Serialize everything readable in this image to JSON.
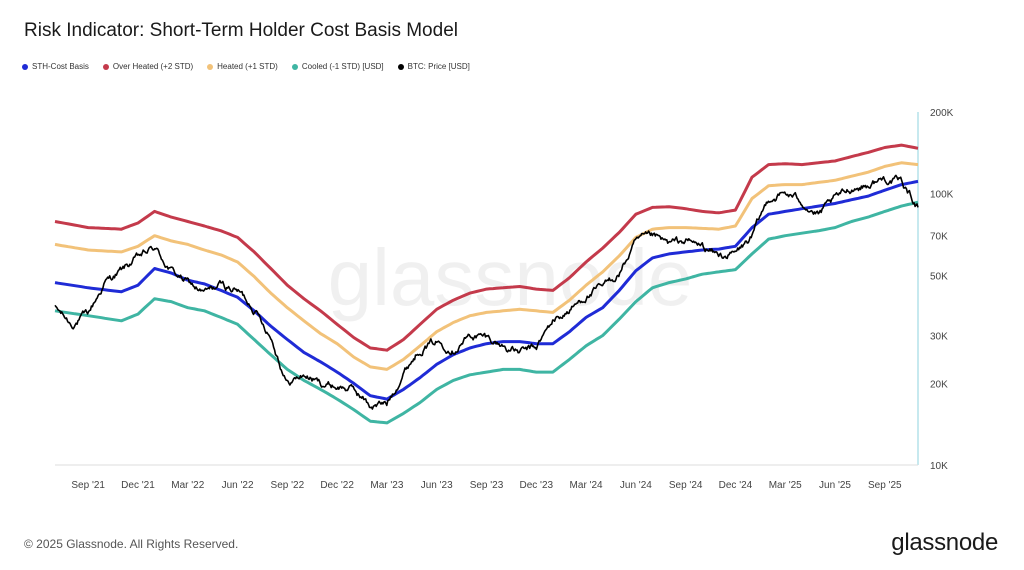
{
  "header": {
    "title": "Risk Indicator: Short-Term Holder Cost Basis Model"
  },
  "footer": {
    "copyright": "© 2025 Glassnode. All Rights Reserved.",
    "brand": "glassnode"
  },
  "watermark": "glassnode",
  "chart_data": {
    "type": "line",
    "title": "Risk Indicator: Short-Term Holder Cost Basis Model",
    "yscale": "log",
    "ylim": [
      10000,
      200000
    ],
    "y_ticks": [
      {
        "v": 10000,
        "label": "10K"
      },
      {
        "v": 20000,
        "label": "20K"
      },
      {
        "v": 30000,
        "label": "30K"
      },
      {
        "v": 50000,
        "label": "50K"
      },
      {
        "v": 70000,
        "label": "70K"
      },
      {
        "v": 100000,
        "label": "100K"
      },
      {
        "v": 200000,
        "label": "200K"
      }
    ],
    "x_ticks": [
      "Sep '21",
      "Dec '21",
      "Mar '22",
      "Jun '22",
      "Sep '22",
      "Dec '22",
      "Mar '23",
      "Jun '23",
      "Sep '23",
      "Dec '23",
      "Mar '24",
      "Jun '24",
      "Sep '24",
      "Dec '24",
      "Mar '25",
      "Jun '25",
      "Sep '25"
    ],
    "x_range": [
      "Jul '21",
      "Nov '25"
    ],
    "legend_position": "top-left",
    "series": [
      {
        "name": "STH-Cost Basis",
        "color": "#1f2bd6",
        "points": [
          [
            0,
            47000
          ],
          [
            2,
            45000
          ],
          [
            4,
            43500
          ],
          [
            5,
            46000
          ],
          [
            6,
            53000
          ],
          [
            7,
            51000
          ],
          [
            8,
            48000
          ],
          [
            9,
            46500
          ],
          [
            10,
            44000
          ],
          [
            11,
            41500
          ],
          [
            12,
            37000
          ],
          [
            13,
            32500
          ],
          [
            14,
            29000
          ],
          [
            15,
            26000
          ],
          [
            16,
            24000
          ],
          [
            17,
            22000
          ],
          [
            18,
            20000
          ],
          [
            19,
            18000
          ],
          [
            20,
            17500
          ],
          [
            21,
            19000
          ],
          [
            22,
            21000
          ],
          [
            23,
            23500
          ],
          [
            24,
            25500
          ],
          [
            25,
            27000
          ],
          [
            26,
            28000
          ],
          [
            27,
            28500
          ],
          [
            28,
            28500
          ],
          [
            29,
            28000
          ],
          [
            30,
            28000
          ],
          [
            31,
            31000
          ],
          [
            32,
            35000
          ],
          [
            33,
            38000
          ],
          [
            34,
            44000
          ],
          [
            35,
            52000
          ],
          [
            36,
            58000
          ],
          [
            37,
            60000
          ],
          [
            38,
            61000
          ],
          [
            39,
            62000
          ],
          [
            40,
            62500
          ],
          [
            41,
            64000
          ],
          [
            42,
            75000
          ],
          [
            43,
            84000
          ],
          [
            44,
            86000
          ],
          [
            45,
            88000
          ],
          [
            46,
            90000
          ],
          [
            47,
            92000
          ],
          [
            48,
            95000
          ],
          [
            49,
            98000
          ],
          [
            50,
            103000
          ],
          [
            51,
            108000
          ],
          [
            52,
            111000
          ]
        ]
      },
      {
        "name": "Over Heated (+2 STD)",
        "color": "#c43a4b",
        "points": [
          [
            0,
            79000
          ],
          [
            2,
            75000
          ],
          [
            4,
            74000
          ],
          [
            5,
            78000
          ],
          [
            6,
            86000
          ],
          [
            7,
            82000
          ],
          [
            8,
            79000
          ],
          [
            9,
            76000
          ],
          [
            10,
            73000
          ],
          [
            11,
            69000
          ],
          [
            12,
            61000
          ],
          [
            13,
            53000
          ],
          [
            14,
            46000
          ],
          [
            15,
            41000
          ],
          [
            16,
            37000
          ],
          [
            17,
            33000
          ],
          [
            18,
            29500
          ],
          [
            19,
            27000
          ],
          [
            20,
            26500
          ],
          [
            21,
            29000
          ],
          [
            22,
            33000
          ],
          [
            23,
            37500
          ],
          [
            24,
            40500
          ],
          [
            25,
            43000
          ],
          [
            26,
            44500
          ],
          [
            27,
            45000
          ],
          [
            28,
            45500
          ],
          [
            29,
            44500
          ],
          [
            30,
            44000
          ],
          [
            31,
            49000
          ],
          [
            32,
            56000
          ],
          [
            33,
            63000
          ],
          [
            34,
            72000
          ],
          [
            35,
            84000
          ],
          [
            36,
            89000
          ],
          [
            37,
            89500
          ],
          [
            38,
            88000
          ],
          [
            39,
            86000
          ],
          [
            40,
            85000
          ],
          [
            41,
            87000
          ],
          [
            42,
            115000
          ],
          [
            43,
            128000
          ],
          [
            44,
            129000
          ],
          [
            45,
            128000
          ],
          [
            46,
            130000
          ],
          [
            47,
            132000
          ],
          [
            48,
            137000
          ],
          [
            49,
            142000
          ],
          [
            50,
            148000
          ],
          [
            51,
            151000
          ],
          [
            52,
            147000
          ]
        ]
      },
      {
        "name": "Heated (+1 STD)",
        "color": "#f2c279",
        "points": [
          [
            0,
            65000
          ],
          [
            2,
            62000
          ],
          [
            4,
            61000
          ],
          [
            5,
            64000
          ],
          [
            6,
            70000
          ],
          [
            7,
            67000
          ],
          [
            8,
            65000
          ],
          [
            9,
            62000
          ],
          [
            10,
            59500
          ],
          [
            11,
            56000
          ],
          [
            12,
            49500
          ],
          [
            13,
            43000
          ],
          [
            14,
            38000
          ],
          [
            15,
            34000
          ],
          [
            16,
            30500
          ],
          [
            17,
            28000
          ],
          [
            18,
            25000
          ],
          [
            19,
            23000
          ],
          [
            20,
            22500
          ],
          [
            21,
            24500
          ],
          [
            22,
            27500
          ],
          [
            23,
            31000
          ],
          [
            24,
            33500
          ],
          [
            25,
            35500
          ],
          [
            26,
            36500
          ],
          [
            27,
            37000
          ],
          [
            28,
            37500
          ],
          [
            29,
            37000
          ],
          [
            30,
            36500
          ],
          [
            31,
            40500
          ],
          [
            32,
            46000
          ],
          [
            33,
            51500
          ],
          [
            34,
            59000
          ],
          [
            35,
            69000
          ],
          [
            36,
            74000
          ],
          [
            37,
            75000
          ],
          [
            38,
            75000
          ],
          [
            39,
            74500
          ],
          [
            40,
            74000
          ],
          [
            41,
            76000
          ],
          [
            42,
            96000
          ],
          [
            43,
            107000
          ],
          [
            44,
            108000
          ],
          [
            45,
            108000
          ],
          [
            46,
            110000
          ],
          [
            47,
            112000
          ],
          [
            48,
            116000
          ],
          [
            49,
            120000
          ],
          [
            50,
            126000
          ],
          [
            51,
            130000
          ],
          [
            52,
            128000
          ]
        ]
      },
      {
        "name": "Cooled (-1 STD) [USD]",
        "color": "#3fb5a3",
        "points": [
          [
            0,
            37000
          ],
          [
            2,
            35500
          ],
          [
            4,
            34000
          ],
          [
            5,
            36000
          ],
          [
            6,
            41000
          ],
          [
            7,
            40000
          ],
          [
            8,
            38000
          ],
          [
            9,
            37000
          ],
          [
            10,
            35000
          ],
          [
            11,
            33000
          ],
          [
            12,
            29000
          ],
          [
            13,
            25500
          ],
          [
            14,
            22500
          ],
          [
            15,
            20500
          ],
          [
            16,
            19000
          ],
          [
            17,
            17500
          ],
          [
            18,
            16000
          ],
          [
            19,
            14500
          ],
          [
            20,
            14300
          ],
          [
            21,
            15500
          ],
          [
            22,
            17000
          ],
          [
            23,
            19000
          ],
          [
            24,
            20500
          ],
          [
            25,
            21500
          ],
          [
            26,
            22000
          ],
          [
            27,
            22500
          ],
          [
            28,
            22500
          ],
          [
            29,
            22000
          ],
          [
            30,
            22000
          ],
          [
            31,
            24500
          ],
          [
            32,
            27500
          ],
          [
            33,
            30000
          ],
          [
            34,
            34500
          ],
          [
            35,
            40000
          ],
          [
            36,
            45000
          ],
          [
            37,
            47000
          ],
          [
            38,
            48500
          ],
          [
            39,
            50500
          ],
          [
            40,
            51500
          ],
          [
            41,
            52500
          ],
          [
            42,
            60000
          ],
          [
            43,
            68000
          ],
          [
            44,
            70000
          ],
          [
            45,
            71500
          ],
          [
            46,
            73000
          ],
          [
            47,
            75000
          ],
          [
            48,
            79000
          ],
          [
            49,
            82000
          ],
          [
            50,
            86000
          ],
          [
            51,
            90000
          ],
          [
            52,
            93000
          ]
        ]
      },
      {
        "name": "BTC: Price [USD]",
        "color": "#000000",
        "noise": 0.045,
        "points": [
          [
            0,
            38000
          ],
          [
            1,
            33000
          ],
          [
            2,
            36000
          ],
          [
            3,
            47000
          ],
          [
            4,
            52000
          ],
          [
            5,
            58000
          ],
          [
            6,
            63000
          ],
          [
            7,
            52000
          ],
          [
            8,
            47000
          ],
          [
            9,
            43000
          ],
          [
            10,
            46000
          ],
          [
            11,
            44000
          ],
          [
            12,
            38000
          ],
          [
            13,
            30000
          ],
          [
            14,
            20000
          ],
          [
            15,
            21500
          ],
          [
            16,
            20000
          ],
          [
            17,
            19500
          ],
          [
            18,
            19000
          ],
          [
            19,
            16500
          ],
          [
            20,
            16800
          ],
          [
            21,
            22000
          ],
          [
            22,
            27000
          ],
          [
            23,
            28500
          ],
          [
            24,
            27000
          ],
          [
            25,
            30000
          ],
          [
            26,
            29500
          ],
          [
            27,
            27500
          ],
          [
            28,
            26000
          ],
          [
            29,
            27000
          ],
          [
            30,
            34000
          ],
          [
            31,
            37000
          ],
          [
            32,
            42000
          ],
          [
            33,
            45000
          ],
          [
            34,
            51000
          ],
          [
            35,
            66000
          ],
          [
            36,
            69000
          ],
          [
            37,
            65000
          ],
          [
            38,
            67000
          ],
          [
            39,
            64000
          ],
          [
            40,
            59000
          ],
          [
            41,
            60000
          ],
          [
            42,
            69000
          ],
          [
            43,
            96000
          ],
          [
            44,
            100000
          ],
          [
            45,
            94000
          ],
          [
            46,
            83000
          ],
          [
            47,
            95000
          ],
          [
            48,
            105000
          ],
          [
            49,
            108000
          ],
          [
            50,
            114000
          ],
          [
            51,
            110000
          ],
          [
            52,
            90000
          ]
        ]
      }
    ]
  }
}
